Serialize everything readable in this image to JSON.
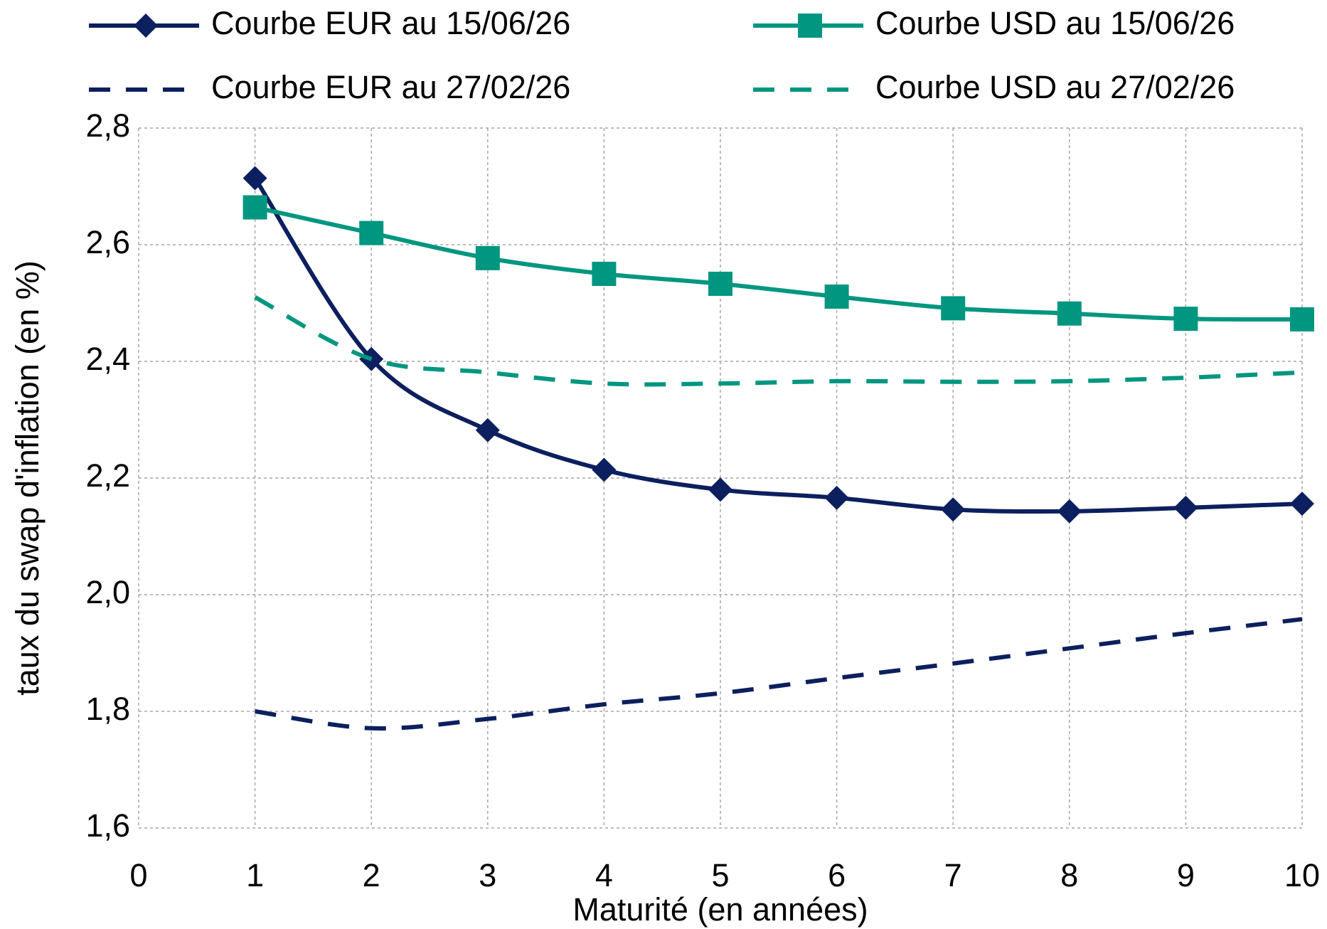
{
  "chart_data": {
    "type": "line",
    "xlabel": "Maturité (en années)",
    "ylabel": "taux du swap d'inflation (en %)",
    "x": [
      1,
      2,
      3,
      4,
      5,
      6,
      7,
      8,
      9,
      10
    ],
    "series": [
      {
        "name": "Courbe EUR au 15/06/26",
        "color": "#0c1f5e",
        "style": "solid",
        "marker": "diamond",
        "values": [
          2.714,
          2.404,
          2.282,
          2.214,
          2.18,
          2.166,
          2.146,
          2.143,
          2.149,
          2.156
        ]
      },
      {
        "name": "Courbe USD au 15/06/26",
        "color": "#009680",
        "style": "solid",
        "marker": "square",
        "values": [
          2.664,
          2.62,
          2.577,
          2.55,
          2.533,
          2.511,
          2.491,
          2.482,
          2.473,
          2.472
        ]
      },
      {
        "name": "Courbe EUR au 27/02/26",
        "color": "#0c1f5e",
        "style": "dashed",
        "marker": "none",
        "values": [
          1.8,
          1.771,
          1.787,
          1.812,
          1.831,
          1.857,
          1.882,
          1.908,
          1.934,
          1.958
        ]
      },
      {
        "name": "Courbe USD au 27/02/26",
        "color": "#009680",
        "style": "dashed",
        "marker": "none",
        "values": [
          2.51,
          2.404,
          2.381,
          2.362,
          2.362,
          2.366,
          2.365,
          2.366,
          2.372,
          2.381
        ]
      }
    ],
    "xlim": [
      0,
      10
    ],
    "xticks": [
      0,
      1,
      2,
      3,
      4,
      5,
      6,
      7,
      8,
      9,
      10
    ],
    "ylim": [
      1.6,
      2.8
    ],
    "yticks": [
      {
        "value": 1.6,
        "label": "1,6"
      },
      {
        "value": 1.8,
        "label": "1,8"
      },
      {
        "value": 2.0,
        "label": "2,0"
      },
      {
        "value": 2.2,
        "label": "2,2"
      },
      {
        "value": 2.4,
        "label": "2,4"
      },
      {
        "value": 2.6,
        "label": "2,6"
      },
      {
        "value": 2.8,
        "label": "2,8"
      }
    ],
    "grid": true,
    "legend": "top",
    "smooth": true
  }
}
